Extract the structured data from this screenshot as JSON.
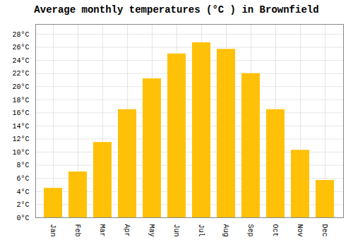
{
  "chart_data": {
    "type": "bar",
    "title": "Average monthly temperatures (°C ) in Brownfield",
    "categories": [
      "Jan",
      "Feb",
      "Mar",
      "Apr",
      "May",
      "Jun",
      "Jul",
      "Aug",
      "Sep",
      "Oct",
      "Nov",
      "Dec"
    ],
    "values": [
      4.5,
      7.0,
      11.5,
      16.5,
      21.2,
      25.0,
      26.7,
      25.7,
      22.0,
      16.5,
      10.3,
      5.7
    ],
    "color": "#FFC107",
    "ylim": [
      0,
      29.5
    ],
    "yticks": [
      {
        "value": 0,
        "label": "0°C"
      },
      {
        "value": 2,
        "label": "2°C"
      },
      {
        "value": 4,
        "label": "4°C"
      },
      {
        "value": 6,
        "label": "6°C"
      },
      {
        "value": 8,
        "label": "8°C"
      },
      {
        "value": 10,
        "label": "10°C"
      },
      {
        "value": 12,
        "label": "12°C"
      },
      {
        "value": 14,
        "label": "14°C"
      },
      {
        "value": 16,
        "label": "16°C"
      },
      {
        "value": 18,
        "label": "18°C"
      },
      {
        "value": 20,
        "label": "20°C"
      },
      {
        "value": 22,
        "label": "22°C"
      },
      {
        "value": 24,
        "label": "24°C"
      },
      {
        "value": 26,
        "label": "26°C"
      },
      {
        "value": 28,
        "label": "28°C"
      }
    ],
    "grid": true
  }
}
